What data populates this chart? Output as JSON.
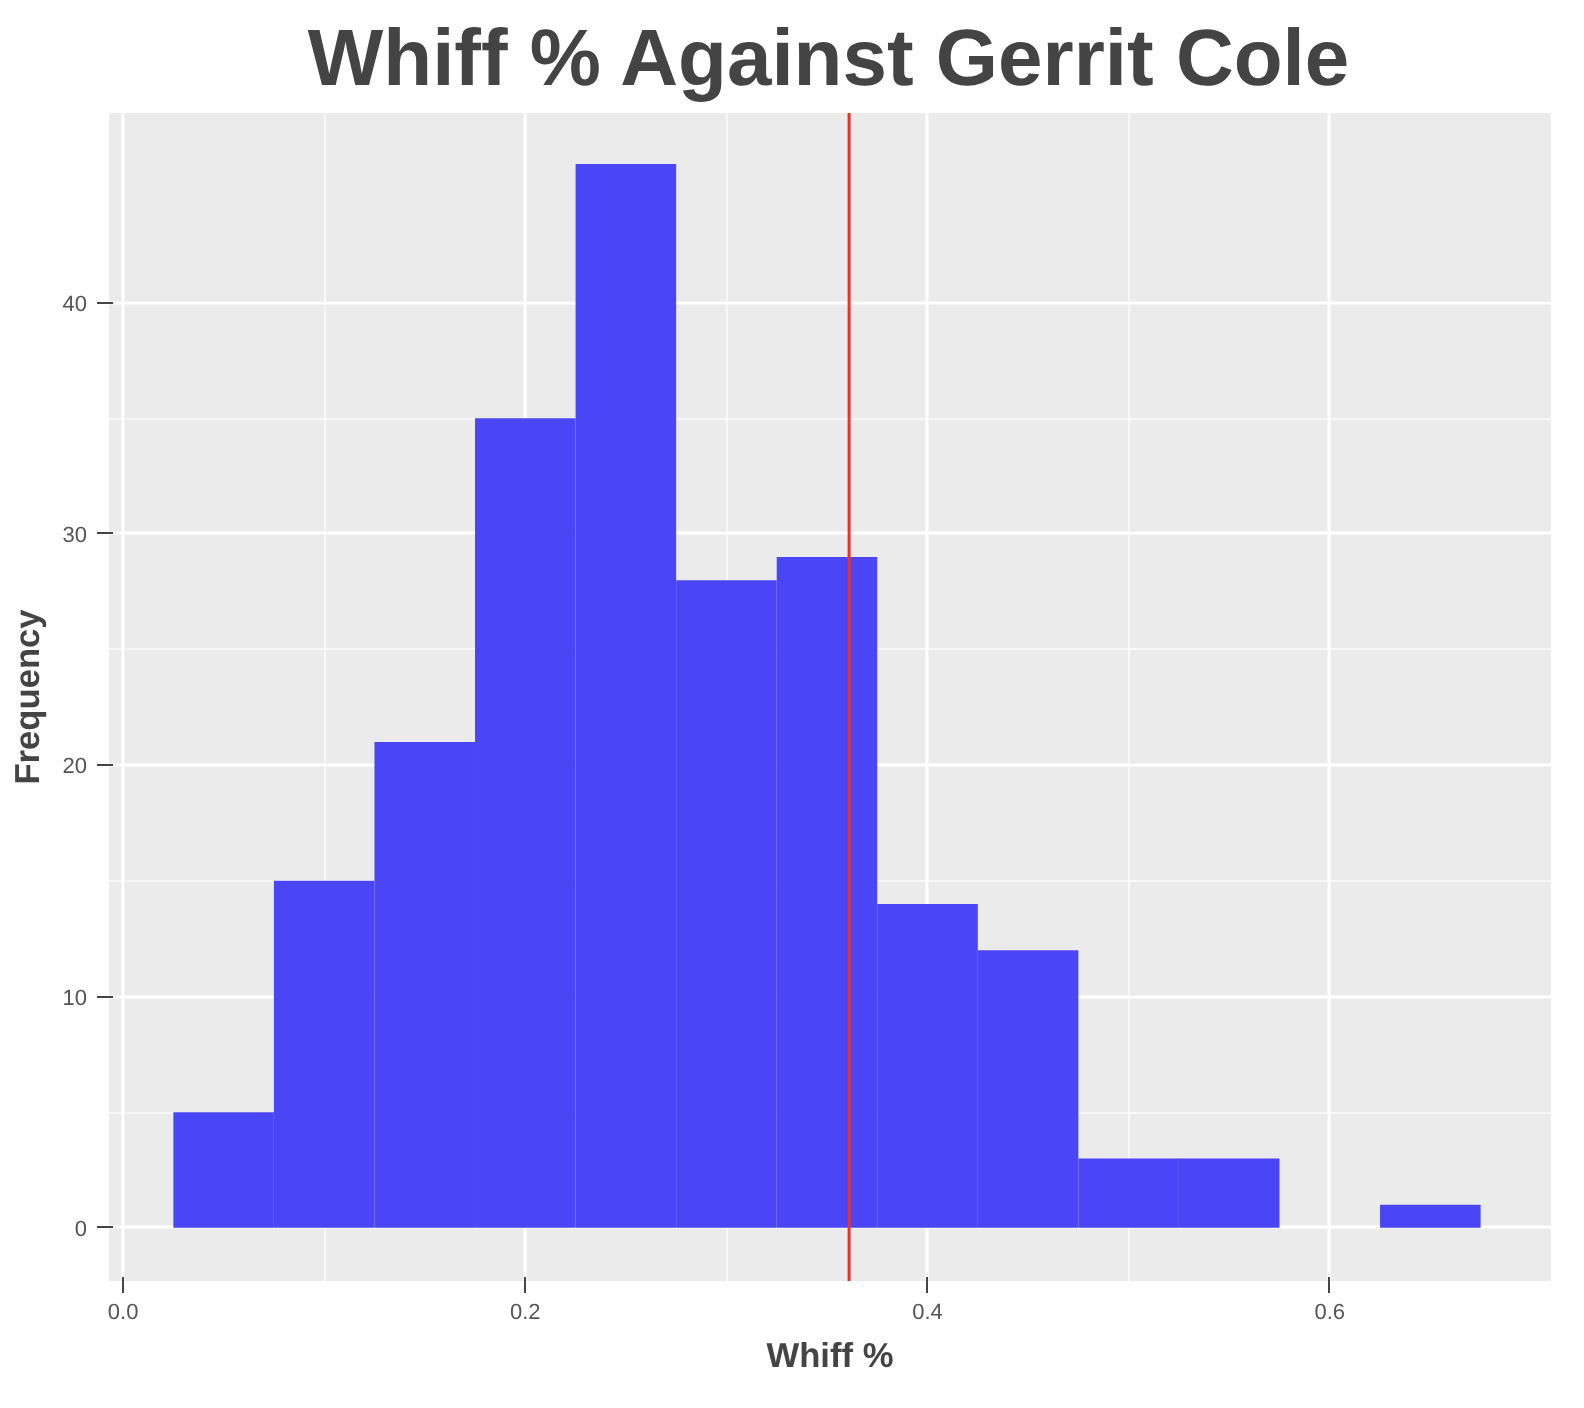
{
  "chart_data": {
    "type": "histogram",
    "title": "Whiff % Against Gerrit Cole",
    "xlabel": "Whiff %",
    "ylabel": "Frequency",
    "bins": [
      0.025,
      0.075,
      0.125,
      0.175,
      0.225,
      0.275,
      0.325,
      0.375,
      0.425,
      0.475,
      0.525,
      0.575,
      0.625,
      0.675
    ],
    "values": [
      5,
      15,
      21,
      35,
      46,
      28,
      29,
      14,
      12,
      3,
      3,
      0,
      1
    ],
    "color": "#4a46f5",
    "xlim": [
      -0.007,
      0.71
    ],
    "ylim": [
      -2.3,
      48.2
    ],
    "xticks": [
      {
        "value": 0.0,
        "label": "0.0"
      },
      0.2,
      0.4,
      0.6
    ],
    "yticks": [
      0,
      10,
      20,
      30,
      40
    ],
    "grid": true,
    "ref_lines": [
      {
        "axis": "x",
        "value": 0.361,
        "label": null,
        "color": "#e8332d"
      }
    ]
  }
}
